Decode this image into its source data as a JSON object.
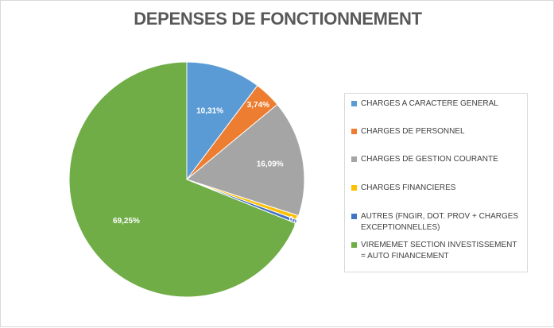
{
  "chart_data": {
    "type": "pie",
    "title": "DEPENSES DE FONCTIONNEMENT",
    "legend_position": "right",
    "categories": [
      "CHARGES A CARACTERE GENERAL",
      "CHARGES DE PERSONNEL",
      "CHARGES DE GESTION COURANTE",
      "CHARGES FINANCIERES",
      "AUTRES (FNGIR, DOT. PROV + CHARGES EXCEPTIONNELLES)",
      "VIREMEMET SECTION INVESTISSEMENT = AUTO FINANCEMENT"
    ],
    "values": [
      10.31,
      3.74,
      16.09,
      0.61,
      0.5,
      69.25
    ],
    "data_labels": [
      "10,31%",
      "3,74%",
      "16,09%",
      "0,61%",
      "0,50%",
      "69,25%"
    ],
    "colors": [
      "#5B9BD5",
      "#ED7D31",
      "#A5A5A5",
      "#FFC000",
      "#4472C4",
      "#70AD47"
    ]
  }
}
